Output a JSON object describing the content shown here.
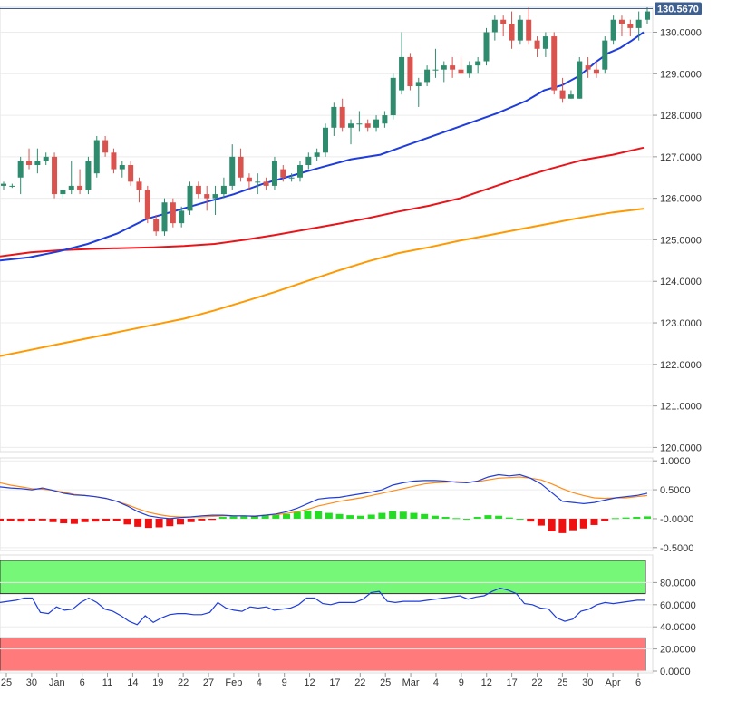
{
  "chart_data": [
    {
      "type": "candlestick",
      "panel": "price",
      "last_price": "130.5670",
      "y_ticks": [
        "130.0000",
        "129.0000",
        "128.0000",
        "127.0000",
        "126.0000",
        "125.0000",
        "124.0000",
        "123.0000",
        "122.0000",
        "121.0000",
        "120.0000"
      ],
      "ylim": [
        119.9,
        130.6
      ],
      "colors": {
        "up": "#2e8b6e",
        "down": "#d9534f",
        "sma_fast": "#1e3ddc",
        "sma_mid": "#e8141a",
        "sma_slow": "#ff9900",
        "badge": "#3f5f8f"
      },
      "candles": [
        [
          126.3,
          126.4,
          126.2,
          126.35
        ],
        [
          126.3,
          126.35,
          126.25,
          126.3
        ],
        [
          126.5,
          127.0,
          126.1,
          126.9
        ],
        [
          126.9,
          127.2,
          126.7,
          126.8
        ],
        [
          126.8,
          127.2,
          126.6,
          126.9
        ],
        [
          126.9,
          127.1,
          126.8,
          127.0
        ],
        [
          127.0,
          127.1,
          126.0,
          126.1
        ],
        [
          126.1,
          126.2,
          126.0,
          126.2
        ],
        [
          126.2,
          126.9,
          126.1,
          126.3
        ],
        [
          126.3,
          126.7,
          126.1,
          126.2
        ],
        [
          126.2,
          127.0,
          126.1,
          126.9
        ],
        [
          126.6,
          127.5,
          126.5,
          127.4
        ],
        [
          127.4,
          127.5,
          127.0,
          127.1
        ],
        [
          127.1,
          127.2,
          126.6,
          126.7
        ],
        [
          126.7,
          126.9,
          126.5,
          126.8
        ],
        [
          126.8,
          126.9,
          126.3,
          126.4
        ],
        [
          126.4,
          126.5,
          125.9,
          126.2
        ],
        [
          126.2,
          126.3,
          125.4,
          125.5
        ],
        [
          125.5,
          125.6,
          125.1,
          125.2
        ],
        [
          125.2,
          126.0,
          125.1,
          125.9
        ],
        [
          125.9,
          126.0,
          125.3,
          125.4
        ],
        [
          125.4,
          125.8,
          125.3,
          125.7
        ],
        [
          125.7,
          126.4,
          125.6,
          126.3
        ],
        [
          126.3,
          126.4,
          126.0,
          126.1
        ],
        [
          126.1,
          126.3,
          125.7,
          126.0
        ],
        [
          126.0,
          126.3,
          125.6,
          126.1
        ],
        [
          126.1,
          126.5,
          126.0,
          126.3
        ],
        [
          126.3,
          127.3,
          126.2,
          127.0
        ],
        [
          127.0,
          127.2,
          126.4,
          126.5
        ],
        [
          126.5,
          126.6,
          126.2,
          126.4
        ],
        [
          126.4,
          126.6,
          126.1,
          126.4
        ],
        [
          126.4,
          126.5,
          126.2,
          126.3
        ],
        [
          126.3,
          127.0,
          126.2,
          126.9
        ],
        [
          126.7,
          126.8,
          126.4,
          126.5
        ],
        [
          126.5,
          126.6,
          126.4,
          126.5
        ],
        [
          126.5,
          126.9,
          126.4,
          126.8
        ],
        [
          126.8,
          127.1,
          126.7,
          127.0
        ],
        [
          127.0,
          127.2,
          126.9,
          127.1
        ],
        [
          127.1,
          127.8,
          127.0,
          127.7
        ],
        [
          127.7,
          128.3,
          127.5,
          128.2
        ],
        [
          128.2,
          128.4,
          127.6,
          127.7
        ],
        [
          127.7,
          127.9,
          127.3,
          127.8
        ],
        [
          127.8,
          128.1,
          127.6,
          127.8
        ],
        [
          127.8,
          127.9,
          127.6,
          127.7
        ],
        [
          127.7,
          128.0,
          127.6,
          127.9
        ],
        [
          127.8,
          128.1,
          127.7,
          128.0
        ],
        [
          128.0,
          129.0,
          127.9,
          128.9
        ],
        [
          128.6,
          130.0,
          128.5,
          129.4
        ],
        [
          129.4,
          129.5,
          128.6,
          128.7
        ],
        [
          128.7,
          128.9,
          128.2,
          128.8
        ],
        [
          128.8,
          129.2,
          128.7,
          129.1
        ],
        [
          129.1,
          129.6,
          128.9,
          129.1
        ],
        [
          129.1,
          129.3,
          128.8,
          129.2
        ],
        [
          129.2,
          129.4,
          128.9,
          129.1
        ],
        [
          129.1,
          129.4,
          129.0,
          129.0
        ],
        [
          129.0,
          129.3,
          128.9,
          129.2
        ],
        [
          129.2,
          129.4,
          129.0,
          129.3
        ],
        [
          129.3,
          130.1,
          129.2,
          130.0
        ],
        [
          130.0,
          130.4,
          129.8,
          130.3
        ],
        [
          130.3,
          130.4,
          129.9,
          130.2
        ],
        [
          130.2,
          130.5,
          129.6,
          129.8
        ],
        [
          129.8,
          130.4,
          129.7,
          130.3
        ],
        [
          130.3,
          130.6,
          129.7,
          129.8
        ],
        [
          129.8,
          129.9,
          129.4,
          129.6
        ],
        [
          129.6,
          130.0,
          129.4,
          129.9
        ],
        [
          129.9,
          130.0,
          128.5,
          128.6
        ],
        [
          128.6,
          128.9,
          128.3,
          128.4
        ],
        [
          128.4,
          128.6,
          128.4,
          128.5
        ],
        [
          128.4,
          129.4,
          128.4,
          129.3
        ],
        [
          129.2,
          129.4,
          128.9,
          129.1
        ],
        [
          129.1,
          129.3,
          128.9,
          129.0
        ],
        [
          129.1,
          129.9,
          129.0,
          129.8
        ],
        [
          129.8,
          130.4,
          129.7,
          130.3
        ],
        [
          130.3,
          130.4,
          129.9,
          130.2
        ],
        [
          130.2,
          130.3,
          129.9,
          130.1
        ],
        [
          130.1,
          130.5,
          129.8,
          130.3
        ],
        [
          130.3,
          130.6,
          130.2,
          130.5
        ]
      ],
      "sma_fast": [
        [
          0,
          124.5
        ],
        [
          5,
          124.58
        ],
        [
          10,
          124.72
        ],
        [
          15,
          124.9
        ],
        [
          20,
          125.15
        ],
        [
          25,
          125.5
        ],
        [
          30,
          125.7
        ],
        [
          35,
          125.9
        ],
        [
          40,
          126.1
        ],
        [
          45,
          126.35
        ],
        [
          50,
          126.55
        ],
        [
          55,
          126.75
        ],
        [
          60,
          126.94
        ],
        [
          65,
          127.05
        ],
        [
          70,
          127.3
        ],
        [
          75,
          127.55
        ],
        [
          80,
          127.8
        ],
        [
          85,
          128.05
        ],
        [
          90,
          128.35
        ],
        [
          93,
          128.6
        ],
        [
          96,
          128.72
        ],
        [
          99,
          128.95
        ],
        [
          102,
          129.3
        ],
        [
          104,
          129.5
        ],
        [
          106,
          129.62
        ],
        [
          108,
          129.8
        ],
        [
          110,
          130.0
        ]
      ],
      "sma_mid": [
        [
          0,
          124.6
        ],
        [
          10,
          124.7
        ],
        [
          20,
          124.75
        ],
        [
          30,
          124.78
        ],
        [
          40,
          124.8
        ],
        [
          50,
          124.82
        ],
        [
          60,
          124.85
        ],
        [
          70,
          124.9
        ],
        [
          80,
          125.0
        ],
        [
          90,
          125.12
        ],
        [
          100,
          125.25
        ],
        [
          110,
          125.38
        ],
        [
          120,
          125.52
        ],
        [
          130,
          125.68
        ],
        [
          140,
          125.82
        ],
        [
          150,
          126.0
        ],
        [
          160,
          126.25
        ],
        [
          170,
          126.5
        ],
        [
          180,
          126.72
        ],
        [
          190,
          126.92
        ],
        [
          200,
          127.05
        ],
        [
          210,
          127.22
        ]
      ],
      "sma_slow": [
        [
          0,
          122.2
        ],
        [
          10,
          122.35
        ],
        [
          20,
          122.5
        ],
        [
          30,
          122.65
        ],
        [
          40,
          122.8
        ],
        [
          50,
          122.95
        ],
        [
          60,
          123.1
        ],
        [
          70,
          123.3
        ],
        [
          80,
          123.52
        ],
        [
          90,
          123.75
        ],
        [
          100,
          124.0
        ],
        [
          110,
          124.25
        ],
        [
          120,
          124.48
        ],
        [
          130,
          124.68
        ],
        [
          140,
          124.82
        ],
        [
          150,
          124.98
        ],
        [
          160,
          125.12
        ],
        [
          170,
          125.26
        ],
        [
          180,
          125.4
        ],
        [
          190,
          125.54
        ],
        [
          200,
          125.66
        ],
        [
          210,
          125.75
        ]
      ]
    },
    {
      "type": "macd",
      "panel": "macd",
      "y_ticks": [
        "1.0000",
        "0.5000",
        "-0.0000",
        "-0.5000"
      ],
      "ylim": [
        -0.55,
        1.05
      ],
      "colors": {
        "macd": "#1e3ddc",
        "signal": "#ff8c1a",
        "hist_pos": "#22dd22",
        "hist_neg": "#ee1111"
      },
      "macd": [
        0.55,
        0.53,
        0.52,
        0.5,
        0.53,
        0.49,
        0.44,
        0.41,
        0.4,
        0.38,
        0.35,
        0.3,
        0.22,
        0.12,
        0.05,
        0.02,
        0.0,
        0.02,
        0.03,
        0.05,
        0.06,
        0.06,
        0.05,
        0.05,
        0.04,
        0.06,
        0.08,
        0.12,
        0.18,
        0.26,
        0.34,
        0.36,
        0.37,
        0.4,
        0.43,
        0.46,
        0.5,
        0.58,
        0.62,
        0.65,
        0.66,
        0.66,
        0.65,
        0.63,
        0.62,
        0.65,
        0.72,
        0.76,
        0.74,
        0.76,
        0.7,
        0.6,
        0.45,
        0.3,
        0.28,
        0.26,
        0.28,
        0.32,
        0.36,
        0.38,
        0.4,
        0.44
      ],
      "signal": [
        0.62,
        0.58,
        0.55,
        0.52,
        0.51,
        0.49,
        0.46,
        0.42,
        0.4,
        0.38,
        0.35,
        0.3,
        0.24,
        0.17,
        0.11,
        0.07,
        0.04,
        0.03,
        0.03,
        0.03,
        0.04,
        0.05,
        0.05,
        0.05,
        0.05,
        0.06,
        0.07,
        0.09,
        0.12,
        0.16,
        0.22,
        0.26,
        0.3,
        0.33,
        0.36,
        0.4,
        0.44,
        0.48,
        0.52,
        0.56,
        0.6,
        0.62,
        0.63,
        0.64,
        0.63,
        0.64,
        0.67,
        0.7,
        0.71,
        0.72,
        0.7,
        0.67,
        0.6,
        0.52,
        0.45,
        0.4,
        0.36,
        0.35,
        0.36,
        0.36,
        0.38,
        0.4
      ],
      "histogram": [
        -0.04,
        -0.04,
        -0.05,
        -0.04,
        -0.03,
        -0.06,
        -0.08,
        -0.09,
        -0.06,
        -0.05,
        -0.04,
        -0.04,
        -0.1,
        -0.14,
        -0.16,
        -0.15,
        -0.13,
        -0.1,
        -0.06,
        -0.03,
        -0.02,
        0.03,
        0.04,
        0.05,
        0.05,
        0.06,
        0.07,
        0.08,
        0.12,
        0.14,
        0.13,
        0.1,
        0.08,
        0.06,
        0.05,
        0.07,
        0.1,
        0.13,
        0.12,
        0.1,
        0.08,
        0.05,
        0.03,
        0.01,
        0.0,
        0.03,
        0.06,
        0.05,
        0.02,
        0.0,
        -0.05,
        -0.12,
        -0.22,
        -0.25,
        -0.2,
        -0.17,
        -0.11,
        -0.04,
        0.01,
        0.02,
        0.03,
        0.04
      ]
    },
    {
      "type": "line",
      "panel": "rsi",
      "y_ticks": [
        "80.0000",
        "60.0000",
        "40.0000",
        "20.0000",
        "0.0000"
      ],
      "ylim": [
        0,
        100
      ],
      "colors": {
        "line": "#1e3ddc",
        "overbought": "#77f777",
        "oversold": "#ff7a7a"
      },
      "overbought_band": [
        70,
        100
      ],
      "oversold_band": [
        0,
        30
      ],
      "rsi": [
        62,
        63,
        64,
        66,
        66,
        53,
        52,
        58,
        55,
        56,
        62,
        66,
        62,
        56,
        54,
        50,
        45,
        42,
        50,
        44,
        48,
        51,
        52,
        52,
        51,
        51,
        53,
        62,
        57,
        55,
        54,
        58,
        57,
        58,
        55,
        56,
        57,
        60,
        66,
        66,
        61,
        60,
        62,
        62,
        62,
        65,
        71,
        72,
        63,
        62,
        63,
        63,
        63,
        64,
        65,
        66,
        67,
        68,
        65,
        67,
        68,
        72,
        75,
        73,
        70,
        61,
        60,
        57,
        56,
        48,
        45,
        47,
        54,
        56,
        60,
        62,
        61,
        62,
        63,
        64,
        64
      ],
      "x_labels": [
        "25",
        "30",
        "Jan",
        "6",
        "11",
        "14",
        "19",
        "22",
        "27",
        "Feb",
        "4",
        "9",
        "12",
        "17",
        "22",
        "25",
        "Mar",
        "4",
        "9",
        "12",
        "17",
        "22",
        "25",
        "30",
        "Apr",
        "6"
      ]
    }
  ]
}
